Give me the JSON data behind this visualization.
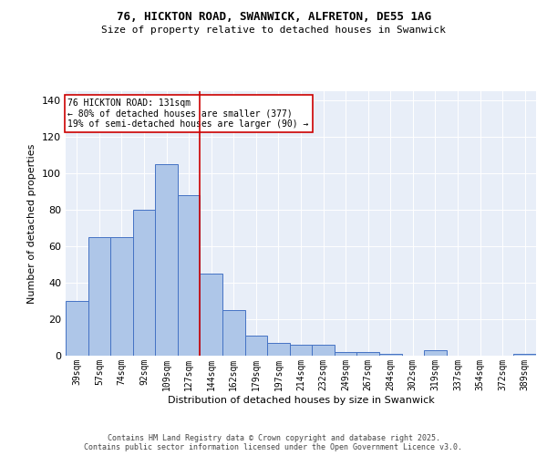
{
  "title_line1": "76, HICKTON ROAD, SWANWICK, ALFRETON, DE55 1AG",
  "title_line2": "Size of property relative to detached houses in Swanwick",
  "xlabel": "Distribution of detached houses by size in Swanwick",
  "ylabel": "Number of detached properties",
  "categories": [
    "39sqm",
    "57sqm",
    "74sqm",
    "92sqm",
    "109sqm",
    "127sqm",
    "144sqm",
    "162sqm",
    "179sqm",
    "197sqm",
    "214sqm",
    "232sqm",
    "249sqm",
    "267sqm",
    "284sqm",
    "302sqm",
    "319sqm",
    "337sqm",
    "354sqm",
    "372sqm",
    "389sqm"
  ],
  "values": [
    30,
    65,
    65,
    80,
    105,
    88,
    45,
    25,
    11,
    7,
    6,
    6,
    2,
    2,
    1,
    0,
    3,
    0,
    0,
    0,
    1
  ],
  "bar_color": "#aec6e8",
  "bar_edge_color": "#4472c4",
  "background_color": "#e8eef8",
  "vline_x": 5.5,
  "vline_color": "#cc0000",
  "annotation_text": "76 HICKTON ROAD: 131sqm\n← 80% of detached houses are smaller (377)\n19% of semi-detached houses are larger (90) →",
  "annotation_box_color": "#ffffff",
  "annotation_box_edge": "#cc0000",
  "ylim": [
    0,
    145
  ],
  "yticks": [
    0,
    20,
    40,
    60,
    80,
    100,
    120,
    140
  ],
  "footer_line1": "Contains HM Land Registry data © Crown copyright and database right 2025.",
  "footer_line2": "Contains public sector information licensed under the Open Government Licence v3.0."
}
